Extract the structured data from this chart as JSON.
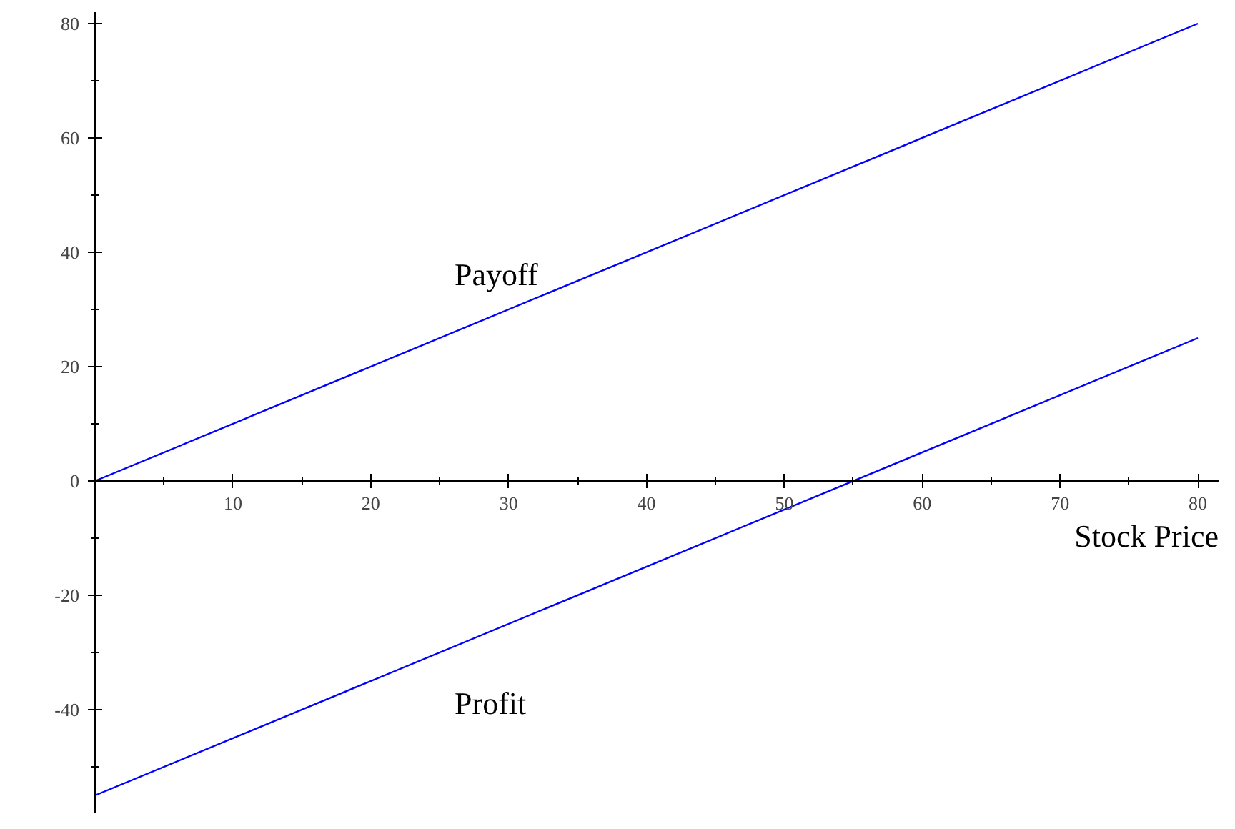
{
  "chart_data": {
    "type": "line",
    "xlabel": "Stock Price",
    "x": [
      0,
      80
    ],
    "series": [
      {
        "name": "Payoff",
        "color": "#0000ff",
        "values": [
          0,
          80
        ]
      },
      {
        "name": "Profit",
        "color": "#0000ff",
        "values": [
          -55,
          25
        ]
      }
    ],
    "xlim": [
      0,
      81.5
    ],
    "ylim": [
      -58,
      82
    ],
    "xticks": [
      10,
      20,
      30,
      40,
      50,
      60,
      70,
      80
    ],
    "yticks": [
      -40,
      -20,
      0,
      20,
      40,
      60,
      80
    ],
    "grid": false
  }
}
